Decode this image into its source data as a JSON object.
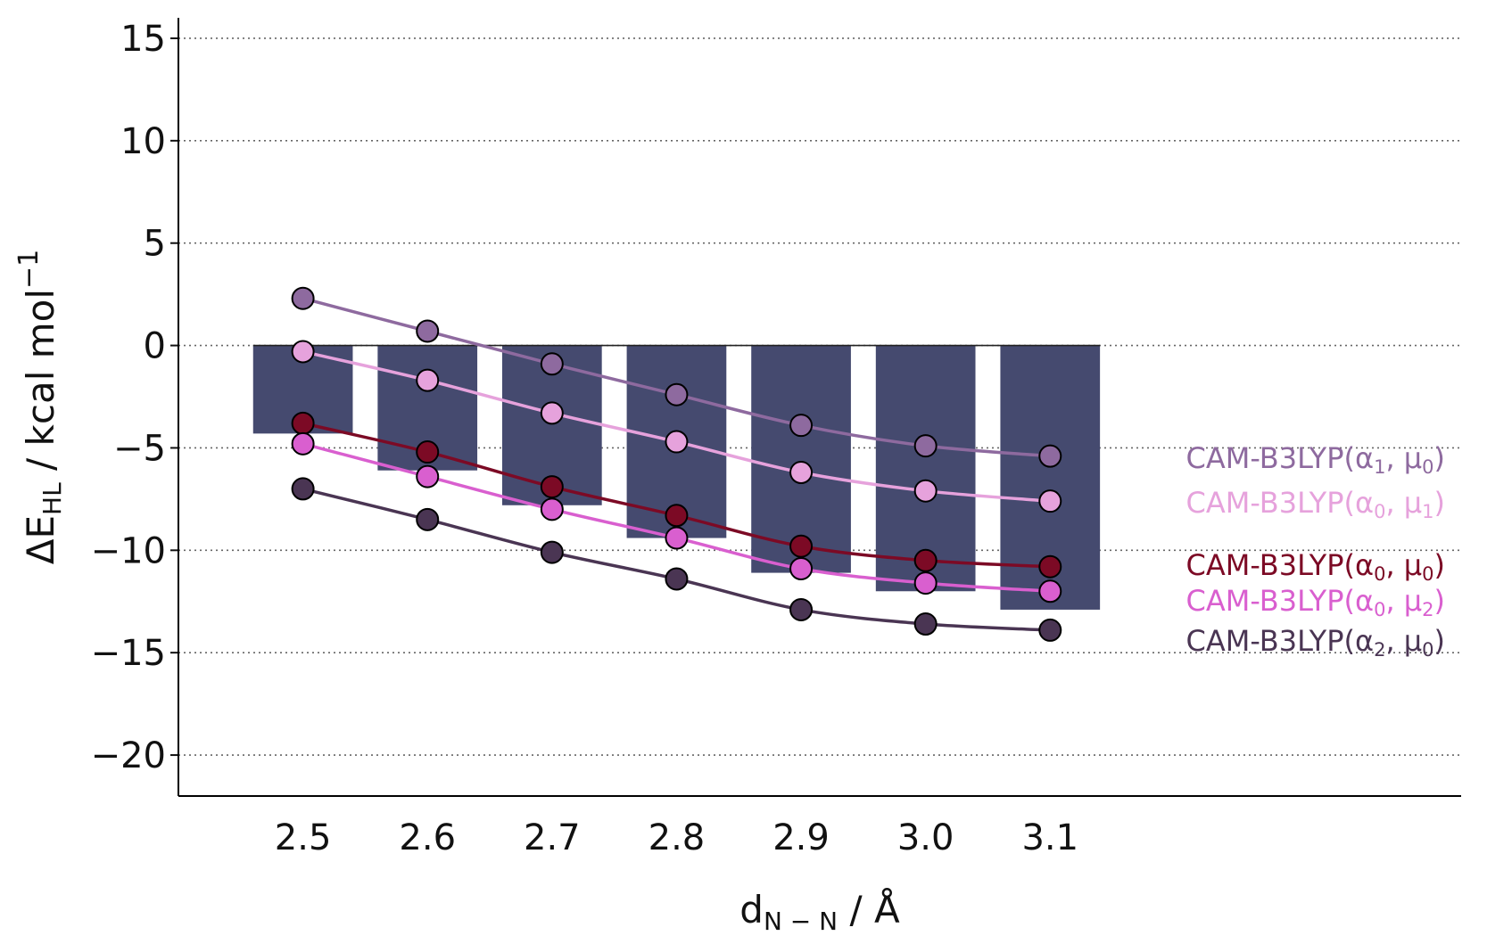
{
  "chart_data": {
    "type": "bar+line",
    "x": [
      2.5,
      2.6,
      2.7,
      2.8,
      2.9,
      3.0,
      3.1
    ],
    "xtick_labels": [
      "2.5",
      "2.6",
      "2.7",
      "2.8",
      "2.9",
      "3.0",
      "3.1"
    ],
    "ytick_values": [
      15,
      10,
      5,
      0,
      -5,
      -10,
      -15,
      -20
    ],
    "ytick_labels": [
      "15",
      "10",
      "5",
      "0",
      "−5",
      "−10",
      "−15",
      "−20"
    ],
    "xlim": [
      2.4,
      3.43
    ],
    "ylim": [
      -22,
      16
    ],
    "xlabel": {
      "main": "d",
      "sub": "N − N",
      "rest": " / Å"
    },
    "ylabel": {
      "main": "ΔE",
      "sub": "HL",
      "rest": " / kcal mol",
      "sup": "−1"
    },
    "grid": "horizontal dotted",
    "bars": {
      "values": [
        -4.3,
        -6.1,
        -7.8,
        -9.4,
        -11.1,
        -12.0,
        -12.9
      ],
      "color": "#454a6f"
    },
    "series": [
      {
        "name": "CAM-B3LYP(α1, μ0)",
        "base": "CAM-B3LYP(",
        "a": "α",
        "a_sub": "1",
        "m": "μ",
        "m_sub": "0",
        "values": [
          2.3,
          0.7,
          -0.9,
          -2.4,
          -3.9,
          -4.9,
          -5.4
        ],
        "color": "#8e6a9f"
      },
      {
        "name": "CAM-B3LYP(α0, μ1)",
        "base": "CAM-B3LYP(",
        "a": "α",
        "a_sub": "0",
        "m": "μ",
        "m_sub": "1",
        "values": [
          -0.3,
          -1.7,
          -3.3,
          -4.7,
          -6.2,
          -7.1,
          -7.6
        ],
        "color": "#e6a2dc"
      },
      {
        "name": "CAM-B3LYP(α0, μ0)",
        "base": "CAM-B3LYP(",
        "a": "α",
        "a_sub": "0",
        "m": "μ",
        "m_sub": "0",
        "values": [
          -3.8,
          -5.2,
          -6.9,
          -8.3,
          -9.8,
          -10.5,
          -10.8
        ],
        "color": "#7c0a25"
      },
      {
        "name": "CAM-B3LYP(α0, μ2)",
        "base": "CAM-B3LYP(",
        "a": "α",
        "a_sub": "0",
        "m": "μ",
        "m_sub": "2",
        "values": [
          -4.8,
          -6.4,
          -8.0,
          -9.4,
          -10.9,
          -11.6,
          -12.0
        ],
        "color": "#d95fcf"
      },
      {
        "name": "CAM-B3LYP(α2, μ0)",
        "base": "CAM-B3LYP(",
        "a": "α",
        "a_sub": "2",
        "m": "μ",
        "m_sub": "0",
        "values": [
          -7.0,
          -8.5,
          -10.1,
          -11.4,
          -12.9,
          -13.6,
          -13.9
        ],
        "color": "#4a3553"
      }
    ],
    "legend_placement": "right, inline next to line ends"
  }
}
